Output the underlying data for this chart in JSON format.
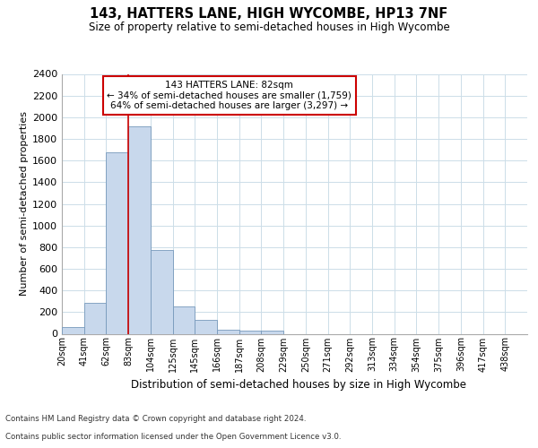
{
  "title": "143, HATTERS LANE, HIGH WYCOMBE, HP13 7NF",
  "subtitle": "Size of property relative to semi-detached houses in High Wycombe",
  "xlabel": "Distribution of semi-detached houses by size in High Wycombe",
  "ylabel": "Number of semi-detached properties",
  "footer_line1": "Contains HM Land Registry data © Crown copyright and database right 2024.",
  "footer_line2": "Contains public sector information licensed under the Open Government Licence v3.0.",
  "annotation_line1": "143 HATTERS LANE: 82sqm",
  "annotation_line2": "← 34% of semi-detached houses are smaller (1,759)",
  "annotation_line3": "64% of semi-detached houses are larger (3,297) →",
  "bar_color": "#c8d8ec",
  "bar_edge_color": "#7799bb",
  "marker_line_color": "#cc0000",
  "annotation_box_edge_color": "#cc0000",
  "background_color": "#ffffff",
  "grid_color": "#ccdde8",
  "bins_labels": [
    "20sqm",
    "41sqm",
    "62sqm",
    "83sqm",
    "104sqm",
    "125sqm",
    "145sqm",
    "166sqm",
    "187sqm",
    "208sqm",
    "229sqm",
    "250sqm",
    "271sqm",
    "292sqm",
    "313sqm",
    "334sqm",
    "354sqm",
    "375sqm",
    "396sqm",
    "417sqm",
    "438sqm"
  ],
  "values": [
    60,
    285,
    1680,
    1920,
    775,
    255,
    130,
    40,
    30,
    30,
    0,
    0,
    0,
    0,
    0,
    0,
    0,
    0,
    0,
    0,
    0
  ],
  "ylim_max": 2400,
  "ytick_step": 200,
  "bin_width": 21,
  "marker_x_label": "83sqm",
  "marker_bin_index": 3,
  "n_bins": 21
}
